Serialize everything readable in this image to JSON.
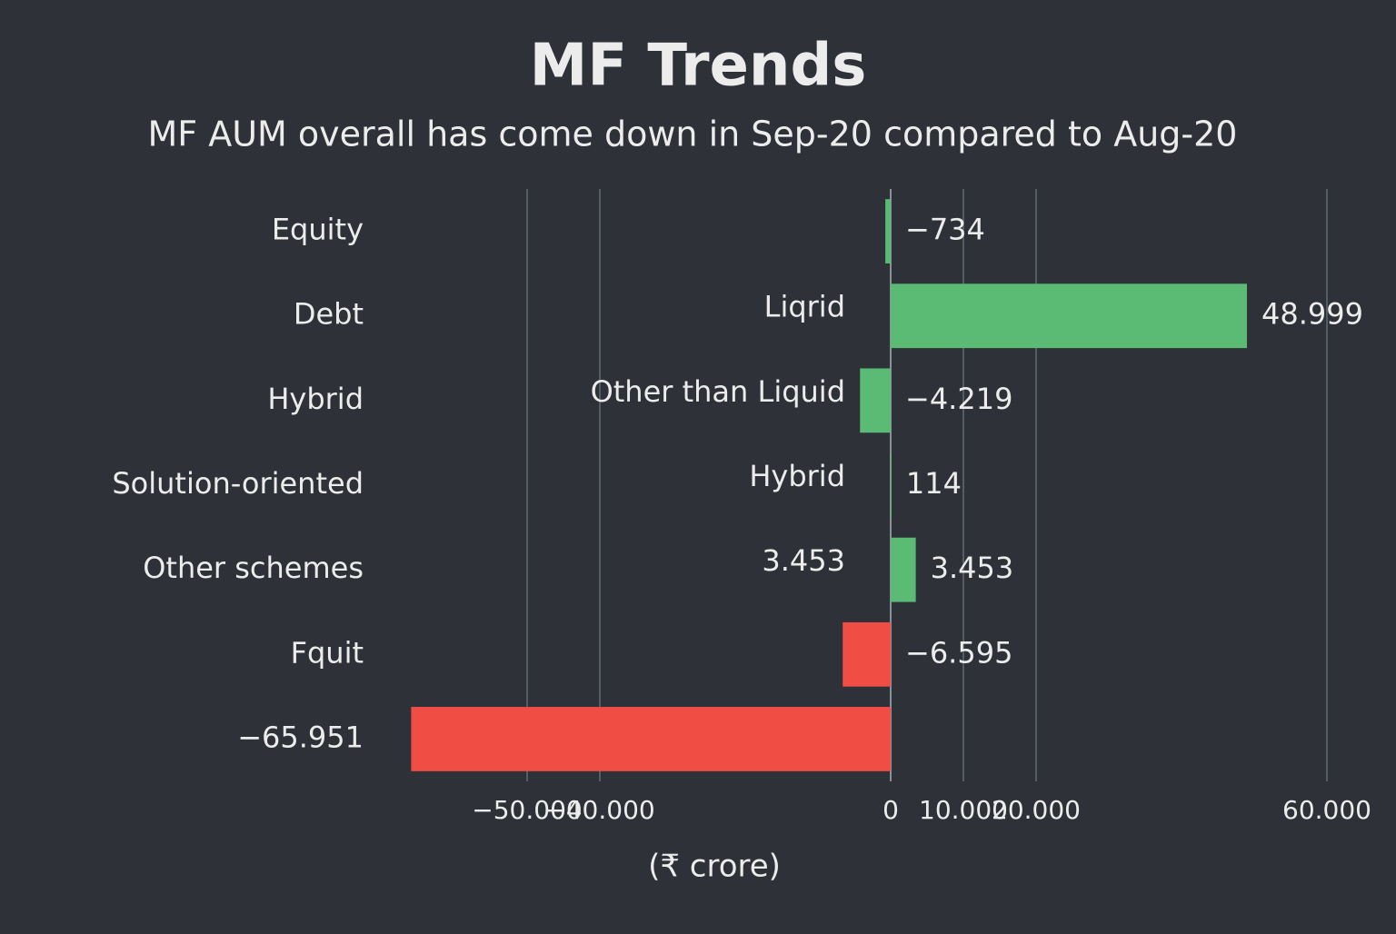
{
  "chart_data": {
    "type": "barh",
    "title": "MF Trends",
    "subtitle": "MF AUM overall has come down in Sep-20 compared to Aug-20",
    "xlabel": "(₹ crore)",
    "categories": [
      "Equity",
      "Debt",
      "Hybrid",
      "Solution-oriented",
      "Other schemes",
      "Fquit",
      "−65.951"
    ],
    "sublabels": [
      null,
      "Liqrid",
      "Other than Liquid",
      "Hybrid",
      "3.453",
      null,
      null
    ],
    "values": [
      -734,
      48999,
      -4219,
      114,
      3453,
      -6595,
      -65951
    ],
    "value_labels": [
      "−734",
      "48.999",
      "−4.219",
      "114",
      "3.453",
      "−6.595",
      null
    ],
    "colors": [
      "#5bbb74",
      "#5bbb74",
      "#5bbb74",
      "#5bbb74",
      "#5bbb74",
      "#f04e45",
      "#f04e45"
    ],
    "xlim": [
      -70000,
      65000
    ],
    "xticks": [
      {
        "value": -50000,
        "label": "−50.000"
      },
      {
        "value": -40000,
        "label": "−40.000"
      },
      0,
      {
        "value": 10000,
        "label": "10.000"
      },
      {
        "value": 20000,
        "label": "20.000"
      },
      {
        "value": 60000,
        "label": "60.000"
      }
    ],
    "grid": true
  }
}
